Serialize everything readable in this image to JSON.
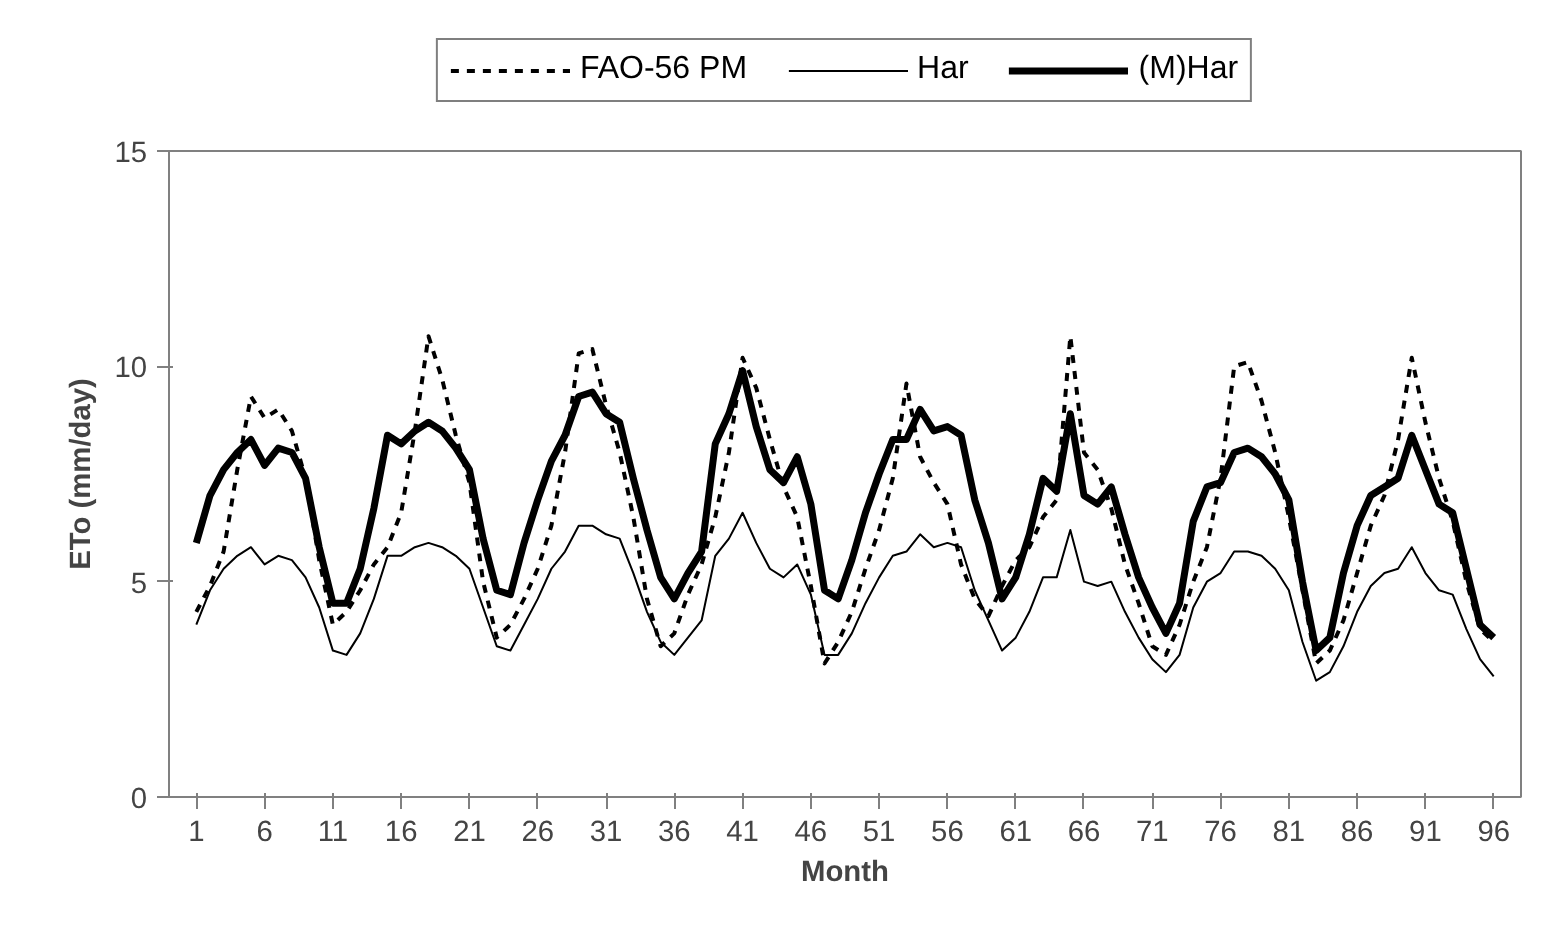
{
  "chart_data": {
    "type": "line",
    "xlabel": "Month",
    "ylabel": "ETo (mm/day)",
    "x": [
      1,
      2,
      3,
      4,
      5,
      6,
      7,
      8,
      9,
      10,
      11,
      12,
      13,
      14,
      15,
      16,
      17,
      18,
      19,
      20,
      21,
      22,
      23,
      24,
      25,
      26,
      27,
      28,
      29,
      30,
      31,
      32,
      33,
      34,
      35,
      36,
      37,
      38,
      39,
      40,
      41,
      42,
      43,
      44,
      45,
      46,
      47,
      48,
      49,
      50,
      51,
      52,
      53,
      54,
      55,
      56,
      57,
      58,
      59,
      60,
      61,
      62,
      63,
      64,
      65,
      66,
      67,
      68,
      69,
      70,
      71,
      72,
      73,
      74,
      75,
      76,
      77,
      78,
      79,
      80,
      81,
      82,
      83,
      84,
      85,
      86,
      87,
      88,
      89,
      90,
      91,
      92,
      93,
      94,
      95,
      96
    ],
    "series": [
      {
        "name": "FAO-56 PM",
        "color": "#000000",
        "line_style": "dashed",
        "values": [
          4.3,
          4.9,
          5.7,
          7.6,
          9.3,
          8.8,
          9.0,
          8.5,
          7.4,
          5.5,
          4.0,
          4.3,
          4.8,
          5.4,
          5.8,
          6.6,
          8.5,
          10.7,
          9.7,
          8.4,
          7.3,
          5.0,
          3.7,
          4.0,
          4.6,
          5.3,
          6.3,
          8.0,
          10.3,
          10.4,
          9.1,
          8.0,
          6.5,
          4.6,
          3.5,
          3.8,
          4.7,
          5.4,
          6.5,
          8.0,
          10.2,
          9.5,
          8.3,
          7.2,
          6.5,
          4.9,
          3.1,
          3.6,
          4.3,
          5.3,
          6.2,
          7.4,
          9.6,
          7.9,
          7.3,
          6.8,
          5.4,
          4.6,
          4.2,
          4.9,
          5.5,
          5.8,
          6.5,
          6.9,
          10.7,
          8.0,
          7.6,
          6.7,
          5.4,
          4.5,
          3.5,
          3.3,
          4.0,
          5.0,
          5.8,
          7.4,
          10.0,
          10.1,
          9.2,
          8.0,
          6.5,
          4.8,
          3.1,
          3.4,
          4.1,
          5.2,
          6.3,
          7.0,
          8.3,
          10.2,
          8.7,
          7.4,
          6.4,
          5.0,
          3.9,
          3.6
        ]
      },
      {
        "name": "Har",
        "color": "#000000",
        "line_style": "solid",
        "values": [
          4.0,
          4.8,
          5.3,
          5.6,
          5.8,
          5.4,
          5.6,
          5.5,
          5.1,
          4.4,
          3.4,
          3.3,
          3.8,
          4.6,
          5.6,
          5.6,
          5.8,
          5.9,
          5.8,
          5.6,
          5.3,
          4.4,
          3.5,
          3.4,
          4.0,
          4.6,
          5.3,
          5.7,
          6.3,
          6.3,
          6.1,
          6.0,
          5.2,
          4.3,
          3.6,
          3.3,
          3.7,
          4.1,
          5.6,
          6.0,
          6.6,
          5.9,
          5.3,
          5.1,
          5.4,
          4.7,
          3.3,
          3.3,
          3.8,
          4.5,
          5.1,
          5.6,
          5.7,
          6.1,
          5.8,
          5.9,
          5.8,
          4.8,
          4.1,
          3.4,
          3.7,
          4.3,
          5.1,
          5.1,
          6.2,
          5.0,
          4.9,
          5.0,
          4.3,
          3.7,
          3.2,
          2.9,
          3.3,
          4.4,
          5.0,
          5.2,
          5.7,
          5.7,
          5.6,
          5.3,
          4.8,
          3.6,
          2.7,
          2.9,
          3.5,
          4.3,
          4.9,
          5.2,
          5.3,
          5.8,
          5.2,
          4.8,
          4.7,
          3.9,
          3.2,
          2.8
        ]
      },
      {
        "name": "(M)Har",
        "color": "#000000",
        "line_style": "solid",
        "values": [
          5.9,
          7.0,
          7.6,
          8.0,
          8.3,
          7.7,
          8.1,
          8.0,
          7.4,
          5.8,
          4.5,
          4.5,
          5.3,
          6.7,
          8.4,
          8.2,
          8.5,
          8.7,
          8.5,
          8.1,
          7.6,
          6.0,
          4.8,
          4.7,
          5.9,
          6.9,
          7.8,
          8.4,
          9.3,
          9.4,
          8.9,
          8.7,
          7.4,
          6.2,
          5.1,
          4.6,
          5.2,
          5.7,
          8.2,
          8.9,
          9.9,
          8.6,
          7.6,
          7.3,
          7.9,
          6.8,
          4.8,
          4.6,
          5.5,
          6.6,
          7.5,
          8.3,
          8.3,
          9.0,
          8.5,
          8.6,
          8.4,
          6.9,
          5.9,
          4.6,
          5.1,
          6.1,
          7.4,
          7.1,
          8.9,
          7.0,
          6.8,
          7.2,
          6.1,
          5.1,
          4.4,
          3.8,
          4.5,
          6.4,
          7.2,
          7.3,
          8.0,
          8.1,
          7.9,
          7.5,
          6.9,
          5.0,
          3.4,
          3.7,
          5.2,
          6.3,
          7.0,
          7.2,
          7.4,
          8.4,
          7.6,
          6.8,
          6.6,
          5.3,
          4.0,
          3.7
        ]
      }
    ],
    "xlim": [
      -1,
      98
    ],
    "xticks": [
      1,
      6,
      11,
      16,
      21,
      26,
      31,
      36,
      41,
      46,
      51,
      56,
      61,
      66,
      71,
      76,
      81,
      86,
      91,
      96
    ],
    "ylim": [
      0,
      15
    ],
    "yticks": [
      0,
      5,
      10,
      15
    ],
    "grid": false,
    "legend": "top"
  }
}
